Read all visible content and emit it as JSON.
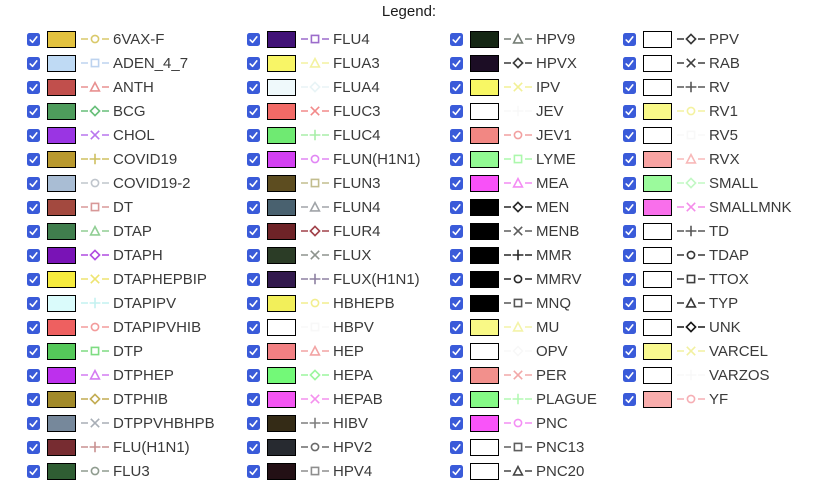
{
  "legend": {
    "title": "Legend:",
    "accent_color": "#3a5bd9",
    "checkbox_checked": true,
    "columns": [
      {
        "items": [
          {
            "label": "6VAX-F",
            "swatch": "#e3c23f",
            "marker": "circle",
            "marker_color": "#d9c96a",
            "checked": true
          },
          {
            "label": "ADEN_4_7",
            "swatch": "#bfdaf4",
            "marker": "square",
            "marker_color": "#bdd3ef",
            "checked": true
          },
          {
            "label": "ANTH",
            "swatch": "#c14f4c",
            "marker": "triangle",
            "marker_color": "#e89090",
            "checked": true
          },
          {
            "label": "BCG",
            "swatch": "#4e9c5c",
            "marker": "diamond",
            "marker_color": "#66be78",
            "checked": true
          },
          {
            "label": "CHOL",
            "swatch": "#9a35e3",
            "marker": "x",
            "marker_color": "#b876ee",
            "checked": true
          },
          {
            "label": "COVID19",
            "swatch": "#b9992e",
            "marker": "plus",
            "marker_color": "#cfc060",
            "checked": true
          },
          {
            "label": "COVID19-2",
            "swatch": "#a9bdd4",
            "marker": "circle",
            "marker_color": "#bfc5cc",
            "checked": true
          },
          {
            "label": "DT",
            "swatch": "#a3493f",
            "marker": "square",
            "marker_color": "#d89898",
            "checked": true
          },
          {
            "label": "DTAP",
            "swatch": "#407e4d",
            "marker": "triangle",
            "marker_color": "#90ce94",
            "checked": true
          },
          {
            "label": "DTAPH",
            "swatch": "#7913b6",
            "marker": "diamond",
            "marker_color": "#af4be0",
            "checked": true
          },
          {
            "label": "DTAPHEPBIP",
            "swatch": "#f6eb3d",
            "marker": "x",
            "marker_color": "#eee470",
            "checked": true
          },
          {
            "label": "DTAPIPV",
            "swatch": "#dafbfb",
            "marker": "plus",
            "marker_color": "#c4f2f0",
            "checked": true
          },
          {
            "label": "DTAPIPVHIB",
            "swatch": "#ee6060",
            "marker": "circle",
            "marker_color": "#f39b9b",
            "checked": true
          },
          {
            "label": "DTP",
            "swatch": "#55c95a",
            "marker": "square",
            "marker_color": "#7edc82",
            "checked": true
          },
          {
            "label": "DTPHEP",
            "swatch": "#bd30ed",
            "marker": "triangle",
            "marker_color": "#d47bf2",
            "checked": true
          },
          {
            "label": "DTPHIB",
            "swatch": "#a28a2a",
            "marker": "diamond",
            "marker_color": "#c2ac52",
            "checked": true
          },
          {
            "label": "DTPPVHBHPB",
            "swatch": "#76889b",
            "marker": "x",
            "marker_color": "#a8aeb6",
            "checked": true
          },
          {
            "label": "FLU(H1N1)",
            "swatch": "#772c31",
            "marker": "plus",
            "marker_color": "#c89090",
            "checked": true
          },
          {
            "label": "FLU3",
            "swatch": "#2f5d33",
            "marker": "circle",
            "marker_color": "#8f9c8f",
            "checked": true
          }
        ]
      },
      {
        "items": [
          {
            "label": "FLU4",
            "swatch": "#411277",
            "marker": "square",
            "marker_color": "#9c6ccb",
            "checked": true
          },
          {
            "label": "FLUA3",
            "swatch": "#f8f566",
            "marker": "triangle",
            "marker_color": "#f3f2a0",
            "checked": true
          },
          {
            "label": "FLUA4",
            "swatch": "#eff9fb",
            "marker": "diamond",
            "marker_color": "#e8f4f6",
            "checked": true
          },
          {
            "label": "FLUC3",
            "swatch": "#f26a66",
            "marker": "x",
            "marker_color": "#f28a8a",
            "checked": true
          },
          {
            "label": "FLUC4",
            "swatch": "#6fea72",
            "marker": "plus",
            "marker_color": "#a8eea8",
            "checked": true
          },
          {
            "label": "FLUN(H1N1)",
            "swatch": "#d340f2",
            "marker": "circle",
            "marker_color": "#e186f4",
            "checked": true
          },
          {
            "label": "FLUN3",
            "swatch": "#5d4d20",
            "marker": "square",
            "marker_color": "#c2bd8e",
            "checked": true
          },
          {
            "label": "FLUN4",
            "swatch": "#49616f",
            "marker": "triangle",
            "marker_color": "#a0a4a8",
            "checked": true
          },
          {
            "label": "FLUR4",
            "swatch": "#6e2327",
            "marker": "diamond",
            "marker_color": "#a04048",
            "checked": true
          },
          {
            "label": "FLUX",
            "swatch": "#2b3c26",
            "marker": "x",
            "marker_color": "#8e948e",
            "checked": true
          },
          {
            "label": "FLUX(H1N1)",
            "swatch": "#32194d",
            "marker": "plus",
            "marker_color": "#8d80a2",
            "checked": true
          },
          {
            "label": "HBHEPB",
            "swatch": "#f2ef5a",
            "marker": "circle",
            "marker_color": "#f2ee8e",
            "checked": true
          },
          {
            "label": "HBPV",
            "swatch": "#ffffff",
            "marker": "square",
            "marker_color": "#f8f8f8",
            "checked": true
          },
          {
            "label": "HEP",
            "swatch": "#f28083",
            "marker": "triangle",
            "marker_color": "#f2a4a4",
            "checked": true
          },
          {
            "label": "HEPA",
            "swatch": "#73f978",
            "marker": "diamond",
            "marker_color": "#9cf59e",
            "checked": true
          },
          {
            "label": "HEPAB",
            "swatch": "#f355f2",
            "marker": "x",
            "marker_color": "#f490ee",
            "checked": true
          },
          {
            "label": "HIBV",
            "swatch": "#342b16",
            "marker": "plus",
            "marker_color": "#7e7e7e",
            "checked": true
          },
          {
            "label": "HPV2",
            "swatch": "#272a30",
            "marker": "circle",
            "marker_color": "#6a6a6a",
            "checked": true
          },
          {
            "label": "HPV4",
            "swatch": "#231015",
            "marker": "square",
            "marker_color": "#8e8e8e",
            "checked": true
          }
        ]
      },
      {
        "items": [
          {
            "label": "HPV9",
            "swatch": "#152714",
            "marker": "triangle",
            "marker_color": "#767e76",
            "checked": true
          },
          {
            "label": "HPVX",
            "swatch": "#1c0d25",
            "marker": "diamond",
            "marker_color": "#3a3a3a",
            "checked": true
          },
          {
            "label": "IPV",
            "swatch": "#f8f764",
            "marker": "x",
            "marker_color": "#f2f096",
            "checked": true
          },
          {
            "label": "JEV",
            "swatch": "#ffffff",
            "marker": "plus",
            "marker_color": "#f8f8f8",
            "checked": true
          },
          {
            "label": "JEV1",
            "swatch": "#f28783",
            "marker": "circle",
            "marker_color": "#f2a0a0",
            "checked": true
          },
          {
            "label": "LYME",
            "swatch": "#92fa93",
            "marker": "square",
            "marker_color": "#acf8ac",
            "checked": true
          },
          {
            "label": "MEA",
            "swatch": "#f851f8",
            "marker": "triangle",
            "marker_color": "#f48cf4",
            "checked": true
          },
          {
            "label": "MEN",
            "swatch": "#000000",
            "marker": "diamond",
            "marker_color": "#262626",
            "checked": true
          },
          {
            "label": "MENB",
            "swatch": "#000000",
            "marker": "x",
            "marker_color": "#5e5e5e",
            "checked": true
          },
          {
            "label": "MMR",
            "swatch": "#000000",
            "marker": "plus",
            "marker_color": "#262626",
            "checked": true
          },
          {
            "label": "MMRV",
            "swatch": "#000000",
            "marker": "circle",
            "marker_color": "#262626",
            "checked": true
          },
          {
            "label": "MNQ",
            "swatch": "#000000",
            "marker": "square",
            "marker_color": "#565656",
            "checked": true
          },
          {
            "label": "MU",
            "swatch": "#f9f986",
            "marker": "triangle",
            "marker_color": "#f4f4a8",
            "checked": true
          },
          {
            "label": "OPV",
            "swatch": "#ffffff",
            "marker": "diamond",
            "marker_color": "#f8f8f8",
            "checked": true
          },
          {
            "label": "PER",
            "swatch": "#f2908c",
            "marker": "x",
            "marker_color": "#f2a8a8",
            "checked": true
          },
          {
            "label": "PLAGUE",
            "swatch": "#85fa86",
            "marker": "plus",
            "marker_color": "#b4f8b4",
            "checked": true
          },
          {
            "label": "PNC",
            "swatch": "#f954f9",
            "marker": "circle",
            "marker_color": "#f48ef4",
            "checked": true
          },
          {
            "label": "PNC13",
            "swatch": "#ffffff",
            "marker": "square",
            "marker_color": "#5e5e5e",
            "checked": true
          },
          {
            "label": "PNC20",
            "swatch": "#ffffff",
            "marker": "triangle",
            "marker_color": "#464646",
            "checked": true
          }
        ]
      },
      {
        "items": [
          {
            "label": "PPV",
            "swatch": "#ffffff",
            "marker": "diamond",
            "marker_color": "#363636",
            "checked": true
          },
          {
            "label": "RAB",
            "swatch": "#ffffff",
            "marker": "x",
            "marker_color": "#3e3e3e",
            "checked": true
          },
          {
            "label": "RV",
            "swatch": "#ffffff",
            "marker": "plus",
            "marker_color": "#565656",
            "checked": true
          },
          {
            "label": "RV1",
            "swatch": "#f9f988",
            "marker": "circle",
            "marker_color": "#f4f2a0",
            "checked": true
          },
          {
            "label": "RV5",
            "swatch": "#ffffff",
            "marker": "square",
            "marker_color": "#f8f8f8",
            "checked": true
          },
          {
            "label": "RVX",
            "swatch": "#f8a3a2",
            "marker": "triangle",
            "marker_color": "#f8b8b8",
            "checked": true
          },
          {
            "label": "SMALL",
            "swatch": "#9bfa9c",
            "marker": "diamond",
            "marker_color": "#c2f8c4",
            "checked": true
          },
          {
            "label": "SMALLMNK",
            "swatch": "#f96feb",
            "marker": "x",
            "marker_color": "#f48cea",
            "checked": true
          },
          {
            "label": "TD",
            "swatch": "#ffffff",
            "marker": "plus",
            "marker_color": "#565656",
            "checked": true
          },
          {
            "label": "TDAP",
            "swatch": "#ffffff",
            "marker": "circle",
            "marker_color": "#363636",
            "checked": true
          },
          {
            "label": "TTOX",
            "swatch": "#ffffff",
            "marker": "square",
            "marker_color": "#3e3e3e",
            "checked": true
          },
          {
            "label": "TYP",
            "swatch": "#ffffff",
            "marker": "triangle",
            "marker_color": "#363636",
            "checked": true
          },
          {
            "label": "UNK",
            "swatch": "#ffffff",
            "marker": "diamond",
            "marker_color": "#161616",
            "checked": true
          },
          {
            "label": "VARCEL",
            "swatch": "#f9f98f",
            "marker": "x",
            "marker_color": "#f2f0a0",
            "checked": true
          },
          {
            "label": "VARZOS",
            "swatch": "#ffffff",
            "marker": "plus",
            "marker_color": "#f8f8f8",
            "checked": true
          },
          {
            "label": "YF",
            "swatch": "#f9adac",
            "marker": "circle",
            "marker_color": "#f6aeb4",
            "checked": true
          }
        ]
      }
    ]
  }
}
